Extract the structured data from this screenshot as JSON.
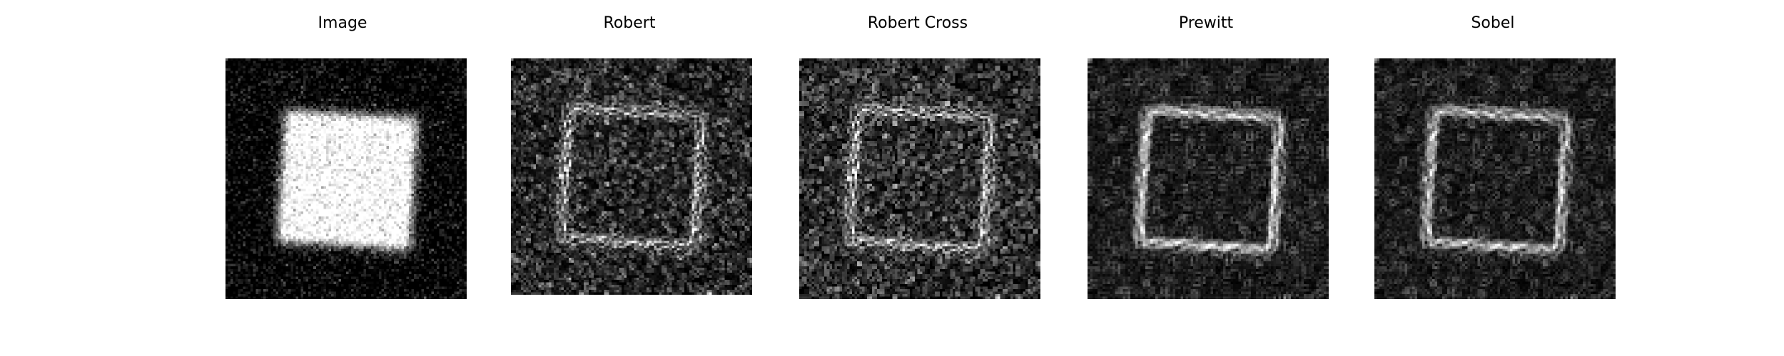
{
  "figure": {
    "panels": [
      {
        "key": "image",
        "title": "Image"
      },
      {
        "key": "robert",
        "title": "Robert"
      },
      {
        "key": "robert_cross",
        "title": "Robert Cross"
      },
      {
        "key": "prewitt",
        "title": "Prewitt"
      },
      {
        "key": "sobel",
        "title": "Sobel"
      }
    ],
    "colormap": "gray",
    "background_color": "#ffffff"
  }
}
